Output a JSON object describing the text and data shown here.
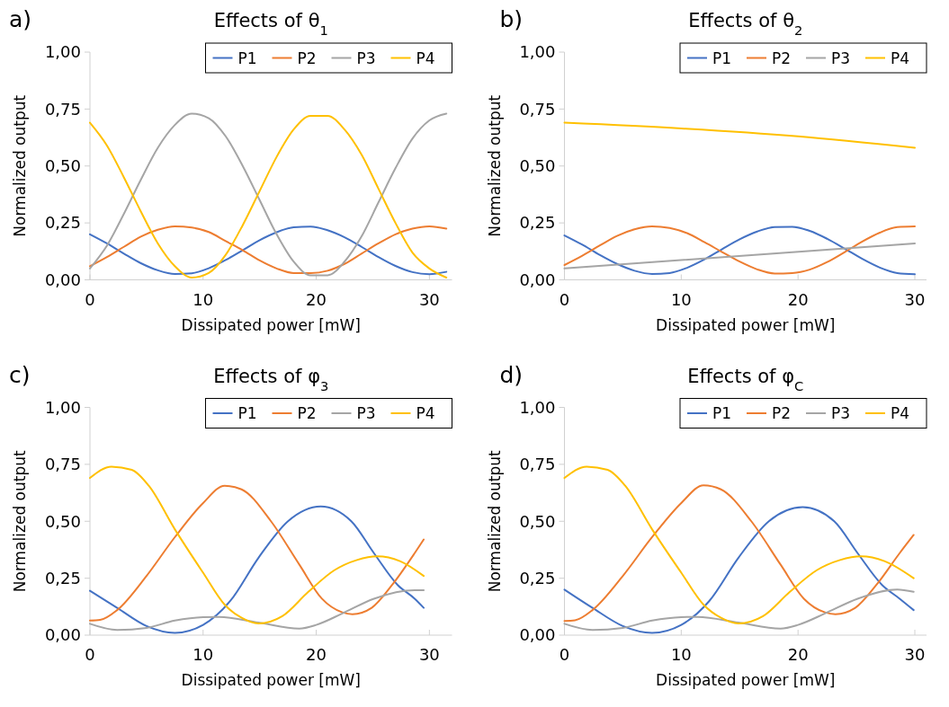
{
  "chart_data": [
    {
      "type": "line",
      "title": "Effects of θ$_{1}$",
      "annotations": [
        "a)"
      ],
      "xlabel": "Dissipated power [mW]",
      "ylabel": "Normalized output",
      "xlim": [
        0,
        32
      ],
      "xticks": [
        0,
        10,
        20,
        30
      ],
      "ylim": [
        0,
        1
      ],
      "yticks": [
        {
          "value": 0,
          "label": "0,00"
        },
        {
          "value": 0.25,
          "label": "0,25"
        },
        {
          "value": 0.5,
          "label": "0,50"
        },
        {
          "value": 0.75,
          "label": "0,75"
        },
        {
          "value": 1,
          "label": "1,00"
        }
      ],
      "grid": false,
      "legend": "top right",
      "x": [
        0,
        1.5,
        3,
        4.5,
        6,
        7.5,
        9,
        10.5,
        12,
        13.5,
        15,
        16.5,
        18,
        19.5,
        21,
        22.5,
        24,
        25.5,
        27,
        28.5,
        30,
        31.5
      ],
      "series": [
        {
          "name": "P1",
          "color": "#4472c4",
          "values": [
            0.2,
            0.16,
            0.115,
            0.073,
            0.042,
            0.026,
            0.029,
            0.051,
            0.087,
            0.13,
            0.174,
            0.209,
            0.231,
            0.234,
            0.218,
            0.187,
            0.145,
            0.1,
            0.061,
            0.034,
            0.025,
            0.035
          ]
        },
        {
          "name": "P2",
          "color": "#ed7d31",
          "values": [
            0.06,
            0.1,
            0.145,
            0.19,
            0.22,
            0.235,
            0.23,
            0.21,
            0.17,
            0.13,
            0.085,
            0.05,
            0.03,
            0.03,
            0.04,
            0.07,
            0.115,
            0.16,
            0.2,
            0.225,
            0.235,
            0.225
          ]
        },
        {
          "name": "P3",
          "color": "#a5a5a5",
          "values": [
            0.05,
            0.15,
            0.29,
            0.44,
            0.58,
            0.68,
            0.73,
            0.71,
            0.63,
            0.5,
            0.35,
            0.2,
            0.08,
            0.02,
            0.02,
            0.08,
            0.19,
            0.34,
            0.49,
            0.62,
            0.7,
            0.73
          ]
        },
        {
          "name": "P4",
          "color": "#ffc000",
          "values": [
            0.69,
            0.59,
            0.45,
            0.3,
            0.16,
            0.06,
            0.01,
            0.03,
            0.11,
            0.24,
            0.39,
            0.54,
            0.66,
            0.72,
            0.72,
            0.66,
            0.55,
            0.4,
            0.25,
            0.12,
            0.05,
            0.01
          ]
        }
      ]
    },
    {
      "type": "line",
      "title": "Effects of θ$_{2}$",
      "annotations": [
        "b)"
      ],
      "xlabel": "Dissipated power [mW]",
      "ylabel": "Normalized output",
      "xlim": [
        0,
        31
      ],
      "xticks": [
        0,
        10,
        20,
        30
      ],
      "ylim": [
        0,
        1
      ],
      "yticks": [
        {
          "value": 0,
          "label": "0,00"
        },
        {
          "value": 0.25,
          "label": "0,25"
        },
        {
          "value": 0.5,
          "label": "0,50"
        },
        {
          "value": 0.75,
          "label": "0,75"
        },
        {
          "value": 1,
          "label": "1,00"
        }
      ],
      "grid": false,
      "legend": "top right",
      "x": [
        0,
        1.5,
        3,
        4.5,
        6,
        7.5,
        9,
        10.5,
        12,
        13.5,
        15,
        16.5,
        18,
        19.5,
        21,
        22.5,
        24,
        25.5,
        27,
        28.5,
        30
      ],
      "series": [
        {
          "name": "P1",
          "color": "#4472c4",
          "values": [
            0.195,
            0.155,
            0.11,
            0.07,
            0.04,
            0.026,
            0.03,
            0.053,
            0.09,
            0.135,
            0.178,
            0.212,
            0.232,
            0.233,
            0.215,
            0.18,
            0.137,
            0.092,
            0.054,
            0.03,
            0.025
          ]
        },
        {
          "name": "P2",
          "color": "#ed7d31",
          "values": [
            0.065,
            0.105,
            0.15,
            0.193,
            0.222,
            0.235,
            0.228,
            0.205,
            0.165,
            0.122,
            0.08,
            0.046,
            0.028,
            0.03,
            0.045,
            0.078,
            0.122,
            0.168,
            0.207,
            0.232,
            0.235
          ]
        },
        {
          "name": "P3",
          "color": "#a5a5a5",
          "x": [
            0,
            30
          ],
          "values": [
            0.05,
            0.16
          ]
        },
        {
          "name": "P4",
          "color": "#ffc000",
          "x": [
            0,
            10,
            20,
            30
          ],
          "values": [
            0.69,
            0.665,
            0.63,
            0.58
          ]
        }
      ]
    },
    {
      "type": "line",
      "title": "Effects of φ$_{3}$",
      "annotations": [
        "c)"
      ],
      "xlabel": "Dissipated power [mW]",
      "ylabel": "Normalized output",
      "xlim": [
        0,
        32
      ],
      "xticks": [
        0,
        10,
        20,
        30
      ],
      "ylim": [
        0,
        1
      ],
      "yticks": [
        {
          "value": 0,
          "label": "0,00"
        },
        {
          "value": 0.25,
          "label": "0,25"
        },
        {
          "value": 0.5,
          "label": "0,50"
        },
        {
          "value": 0.75,
          "label": "0,75"
        },
        {
          "value": 1,
          "label": "1,00"
        }
      ],
      "grid": false,
      "legend": "top right",
      "series": [
        {
          "name": "P1",
          "color": "#4472c4",
          "x": [
            0,
            2.4,
            5,
            7.5,
            10,
            12.4,
            14.9,
            17.5,
            20.4,
            23.1,
            25.1,
            27.2,
            28.7,
            29.5
          ],
          "values": [
            0.195,
            0.12,
            0.04,
            0.01,
            0.045,
            0.15,
            0.34,
            0.5,
            0.565,
            0.5,
            0.36,
            0.22,
            0.16,
            0.12
          ]
        },
        {
          "name": "P2",
          "color": "#ed7d31",
          "x": [
            0,
            0.9,
            2.4,
            5,
            7.5,
            10,
            11.9,
            13.4,
            16,
            18.5,
            20.5,
            22.3,
            23.2,
            24.9,
            26.7,
            28.7,
            29.5
          ],
          "values": [
            0.064,
            0.067,
            0.11,
            0.26,
            0.43,
            0.58,
            0.656,
            0.64,
            0.5,
            0.31,
            0.16,
            0.1,
            0.092,
            0.12,
            0.22,
            0.36,
            0.42
          ]
        },
        {
          "name": "P3",
          "color": "#a5a5a5",
          "x": [
            0,
            2.4,
            5,
            7.5,
            10,
            11.4,
            14.9,
            18.5,
            20,
            22.3,
            25.1,
            28.7,
            29.5
          ],
          "values": [
            0.05,
            0.023,
            0.032,
            0.064,
            0.079,
            0.08,
            0.055,
            0.029,
            0.045,
            0.095,
            0.16,
            0.197,
            0.197
          ]
        },
        {
          "name": "P4",
          "color": "#ffc000",
          "x": [
            0,
            1.9,
            3.7,
            5.2,
            7.5,
            10,
            11.9,
            13.4,
            14.9,
            17,
            19.3,
            21.6,
            23.6,
            25.4,
            27.4,
            29.5
          ],
          "values": [
            0.69,
            0.74,
            0.726,
            0.656,
            0.465,
            0.274,
            0.134,
            0.076,
            0.051,
            0.083,
            0.19,
            0.285,
            0.33,
            0.346,
            0.325,
            0.26
          ]
        }
      ]
    },
    {
      "type": "line",
      "title": "Effects of φ$_{C}$",
      "annotations": [
        "d)"
      ],
      "xlabel": "Dissipated power [mW]",
      "ylabel": "Normalized output",
      "xlim": [
        0,
        31
      ],
      "xticks": [
        0,
        10,
        20,
        30
      ],
      "ylim": [
        0,
        1
      ],
      "yticks": [
        {
          "value": 0,
          "label": "0,00"
        },
        {
          "value": 0.25,
          "label": "0,25"
        },
        {
          "value": 0.5,
          "label": "0,50"
        },
        {
          "value": 0.75,
          "label": "0,75"
        },
        {
          "value": 1,
          "label": "1,00"
        }
      ],
      "grid": false,
      "legend": "top right",
      "series": [
        {
          "name": "P1",
          "color": "#4472c4",
          "x": [
            0,
            2.4,
            5,
            7.5,
            10,
            12.4,
            14.9,
            17.5,
            20.4,
            23.1,
            25.1,
            27.2,
            28.7,
            29.9
          ],
          "values": [
            0.2,
            0.12,
            0.04,
            0.01,
            0.045,
            0.15,
            0.34,
            0.5,
            0.562,
            0.5,
            0.36,
            0.22,
            0.16,
            0.11
          ]
        },
        {
          "name": "P2",
          "color": "#ed7d31",
          "x": [
            0,
            0.9,
            2.4,
            5,
            7.5,
            10,
            11.9,
            13.4,
            16,
            18.5,
            20.5,
            22.3,
            23.2,
            24.9,
            26.7,
            28.7,
            29.9
          ],
          "values": [
            0.062,
            0.065,
            0.11,
            0.26,
            0.43,
            0.58,
            0.658,
            0.64,
            0.5,
            0.31,
            0.16,
            0.1,
            0.092,
            0.12,
            0.22,
            0.36,
            0.44
          ]
        },
        {
          "name": "P3",
          "color": "#a5a5a5",
          "x": [
            0,
            2.4,
            5,
            7.5,
            10,
            11.4,
            14.9,
            18.5,
            20,
            22.3,
            25.1,
            28.5,
            29.9
          ],
          "values": [
            0.05,
            0.023,
            0.032,
            0.064,
            0.079,
            0.08,
            0.055,
            0.029,
            0.045,
            0.095,
            0.16,
            0.2,
            0.19
          ]
        },
        {
          "name": "P4",
          "color": "#ffc000",
          "x": [
            0,
            1.9,
            3.7,
            5.2,
            7.5,
            10,
            11.9,
            13.4,
            14.9,
            17,
            19.3,
            21.6,
            23.6,
            25.4,
            27.4,
            29.9
          ],
          "values": [
            0.69,
            0.74,
            0.726,
            0.656,
            0.465,
            0.274,
            0.134,
            0.076,
            0.051,
            0.083,
            0.19,
            0.285,
            0.33,
            0.346,
            0.325,
            0.25
          ]
        }
      ]
    }
  ]
}
